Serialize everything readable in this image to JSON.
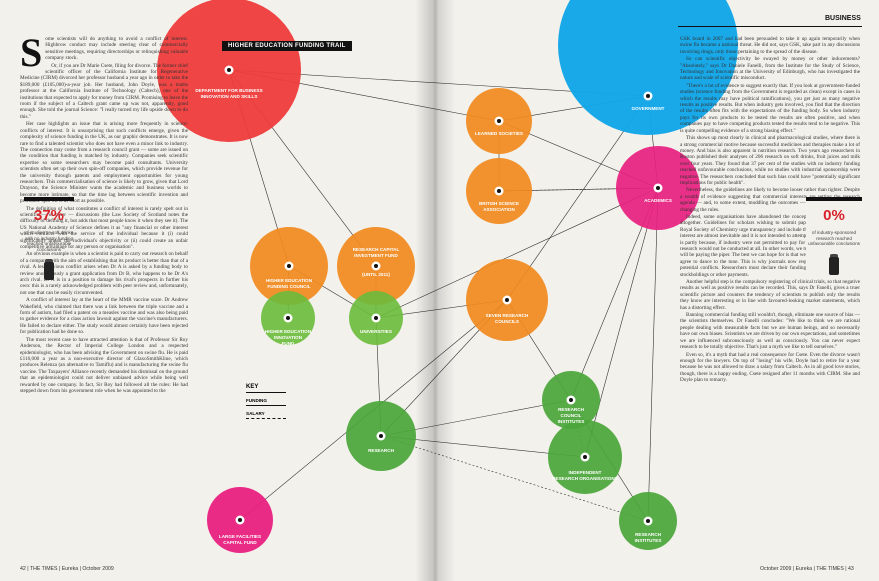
{
  "left_page": {
    "dropcap": "S",
    "column1_text": "ome scientists will do anything to avoid a conflict of interest. Highbrow conduct may include steering clear of commercially sensitive meetings, requiring directorships or relinquishing valuable company stock.",
    "column1_text2": "Or, if you are Dr Marie Csete, filing for divorce. The former chief scientific officer of the California Institute for Regenerative Medicine (CIRM) divorced her professor husband a year ago in order to take the $189,000 (£105,000)-a-year job. Her husband, John Doyle, was a maths professor at the California Institute of Technology (Caltech), one of the institutions that expected to apply for money from CIRM. Promising to leave the room if the subject of a Caltech grant came up was not, apparently, good enough. She told the journal Science: \"I really turned my life upside down to do this.\"",
    "column1_text3": "Her case highlights an issue that is arising more frequently in science: conflicts of interest. It is unsurprising that such conflicts emerge, given the complexity of science funding in the UK, as our graphic demonstrates. It is now rare to find a talented scientist who does not have even a minor link to industry. The connection may come from a research council grant — some are issued on the condition that funding is matched by industry. Companies seek scientific expertise so some researchers may become paid consultants. University scientists often set up their own spin-off companies, which provide revenue for the university through patents and employment opportunities for young researchers. This commercialisation of science is likely to grow, given that Lord Drayson, the Science Minister wants the academic and business worlds to become more intimate, so that the time lag between scientific invention and profitable spin-off is as short as possible.",
    "column1_text4": "The definition of what constitutes a conflict of interest is rarely spelt out in scientific — or other — discussions (the Law Society of Scotland notes the difficulty of defining it, but adds that most people know it when they see it). The US National Academy of Science defines it as \"any financial or other interest which conflicts with the service of the individual because it (i) could significantly impair the individual's objectivity or (ii) could create an unfair competitive advantage for any person or organisation\".",
    "column1_text5": "An obvious example is when a scientist is paid to carry out research on behalf of a company with the aim of establishing that its product is better than that of a rival. A less obvious conflict arises when Dr A is asked by a funding body to review anonymously a grant application from Dr B, who happens to be Dr A's arch rival. Dr A is in a position to damage his rival's prospects in further his own: this is a rarely acknowledged problem with peer review and, unfortunately, not one that can be easily circumvented.",
    "column1_text6": "A conflict of interest lay at the heart of the MMR vaccine scare. Dr Andrew Wakefield, who claimed that there was a link between the triple vaccine and a form of autism, had filed a patent on a measles vaccine and was also being paid to gather evidence for a class action lawsuit against the vaccine's manufacturers. He failed to declare either. The study would almost certainly have been rejected for publication had he done so.",
    "column1_text7": "The most recent case to have attracted attention is that of Professor Sir Roy Anderson, the Rector of Imperial College London and a respected epidemiologist, who has been advising the Government on swine flu. He is paid £116,000 a year as a non-executive director of GlaxoSmithKline, which produces Relenza (an alternative to Tamiflu) and is manufacturing the swine flu vaccine. The Taxpayers' Alliance recently demanded his dismissal on the ground that an epidemiologist could not deliver unbiased advice while being well rewarded by one company. In fact, Sir Roy had followed all the rules: He had stepped down from his government role when he was appointed to the",
    "stat_value": "37%",
    "stat_caption": "of studies on soft drinks with no industry funding reached unfavourable conclusions",
    "footer": "42 | THE TIMES | Eureka | October 2009"
  },
  "right_page": {
    "section": "BUSINESS",
    "column_text": "GSK board in 2007 and had been persuaded to take it up again temporarily when swine flu became a national threat. He did not, says GSK, take part in any discussions involving drugs, only those pertaining to the spread of the disease.",
    "column_text2": "So can scientific objectivity be swayed by money or other inducements? \"Absolutely,\" says Dr Daniele Fanelli, from the Institute for the Study of Science, Technology and Innovation at the University of Edinburgh, who has investigated the nature and scale of scientific misconduct.",
    "column_text3": "\"There's a lot of evidence to suggest exactly that. If you look at government-funded studies (science funding from the Government is regarded as clean) except in cases in which the results may have political ramifications), you get just as many negative results as positive results. But when industry gets involved, you find that the direction of the results often fits with the expectations of the funding body. So when industry pays for its own products to be tested the results are often positive, and when companies pay to have competing products tested the results tend to be negative. This is quite compelling evidence of a strong biasing effect.\"",
    "column_text4": "This shows up most clearly in clinical and pharmacological studies, where there is a strong commercial motive because successful medicines and therapies make a lot of money. And bias is also apparent in nutrition research. Two years ago researchers in Boston published their analyses of 206 research on soft drinks, fruit juices and milk over four years. They found that 37 per cent of the studies with no industry funding reached unfavourable conclusions, while no studies with industrial sponsorship were negative. The researchers concluded that such bias could have \"potentially significant implications for public health\".",
    "column_text5": "Nevertheless, the guidelines are likely to become looser rather than tighter. Despite a wealth of evidence suggesting that commercial interests are setting the research agenda — and, to some extent, muddling the outcomes — there is little appetite for changing the rules.",
    "column_text6": "Indeed, some organisations have abandoned the concept of complete objectivity altogether. Guidelines for scholars wishing to submit papers to the Journal of the Royal Society of Chemistry urge transparency and include the statement: \"Conflicts of interest are almost inevitable and it is not intended to attempt to eliminate these.\" This is partly because, if industry were not permitted to pay for research, the bulk of that research would not be conducted at all. In other words, we must accept that somebody will be paying the piper. The best we can hope for is that we know who it is before we agree to dance to the tune. This is why journals now request full disclosure about potential conflicts. Researchers must declare their funding source and any relevant stockholdings or other payments.",
    "column_text7": "Another helpful step is the compulsory registering of clinical trials, so that negative results as well as positive results can be recorded. This, says Dr Fanelli, gives a truer scientific picture and counters the tendency of scientists to publish only the results they know are interesting or in line with favoured-looking market statements, which has a distorting effect.",
    "column_text8": "Banning commercial funding still wouldn't, though, eliminate one source of bias — the scientists themselves. Dr Fanelli concludes: \"We like to think we are rational people dealing with measurable facts but we are human beings, and so necessarily have our own biases. Scientists we are driven by our own expectations, and sometimes we are influenced subconsciously as well as consciously. You can never expect research to be totally objective. That's just a myth we like to tell ourselves.\"",
    "column_text9": "Even so, it's a myth that had a real consequence for Csete. Even the divorce wasn't enough for the lawyers. On top of \"losing\" his wife, Doyle had to retire for a year because he was not allowed to draw a salary from Caltech. As in all good love stories, though, there is a happy ending. Csete resigned after 11 months with CIRM. She and Doyle plan to remarry.",
    "stat_value": "0%",
    "stat_caption": "of industry-sponsored research reached unfavourable conclusions",
    "footer": "October 2009 | Eureka | THE TIMES | 43"
  },
  "graphic": {
    "title": "HIGHER EDUCATION FUNDING TRAIL",
    "nodes": [
      {
        "id": "bis",
        "label": [
          "DEPARTMENT FOR BUSINESS",
          "INNOVATION AND SKILLS"
        ],
        "color": "#ee3b3b"
      },
      {
        "id": "gov",
        "label": [
          "GOVERNMENT"
        ],
        "color": "#12a6e8"
      },
      {
        "id": "learned",
        "label": [
          "LEARNED SOCIETIES"
        ],
        "color": "#f28a1e"
      },
      {
        "id": "bsa",
        "label": [
          "BRITISH SCIENCE",
          "ASSOCIATION"
        ],
        "color": "#f28a1e"
      },
      {
        "id": "academics",
        "label": [
          "ACADEMICS"
        ],
        "color": "#e8207f"
      },
      {
        "id": "hefc",
        "label": [
          "HIGHER EDUCATION",
          "FUNDING COUNCIL"
        ],
        "color": "#f28a1e"
      },
      {
        "id": "rcif",
        "label": [
          "RESEARCH CAPITAL",
          "INVESTMENT FUND",
          "(UNTIL 2011)"
        ],
        "color": "#f28a1e"
      },
      {
        "id": "heif",
        "label": [
          "HIGHER EDUCATION",
          "INNOVATION",
          "FUND"
        ],
        "color": "#6cbb3c"
      },
      {
        "id": "universities",
        "label": [
          "UNIVERSITIES"
        ],
        "color": "#6cbb3c"
      },
      {
        "id": "src",
        "label": [
          "SEVEN RESEARCH",
          "COUNCILS"
        ],
        "color": "#f28a1e"
      },
      {
        "id": "rci",
        "label": [
          "RESEARCH",
          "COUNCIL",
          "INSTITUTES"
        ],
        "color": "#4aa63a"
      },
      {
        "id": "research",
        "label": [
          "RESEARCH"
        ],
        "color": "#4aa63a"
      },
      {
        "id": "iro",
        "label": [
          "INDEPENDENT",
          "RESEARCH ORGANISATIONS"
        ],
        "color": "#4aa63a"
      },
      {
        "id": "ri",
        "label": [
          "RESEARCH",
          "INSTITUTES"
        ],
        "color": "#4aa63a"
      },
      {
        "id": "lfcf",
        "label": [
          "LARGE FACILITIES",
          "CAPITAL FUND"
        ],
        "color": "#e8207f"
      }
    ],
    "key": {
      "title": "KEY",
      "funding": "FUNDING",
      "salary": "SALARY"
    }
  },
  "colors": {
    "red": "#ee3b3b",
    "blue": "#12a6e8",
    "orange": "#f28a1e",
    "green": "#6cbb3c",
    "magenta": "#e8207f",
    "stat_red": "#d8232a"
  }
}
